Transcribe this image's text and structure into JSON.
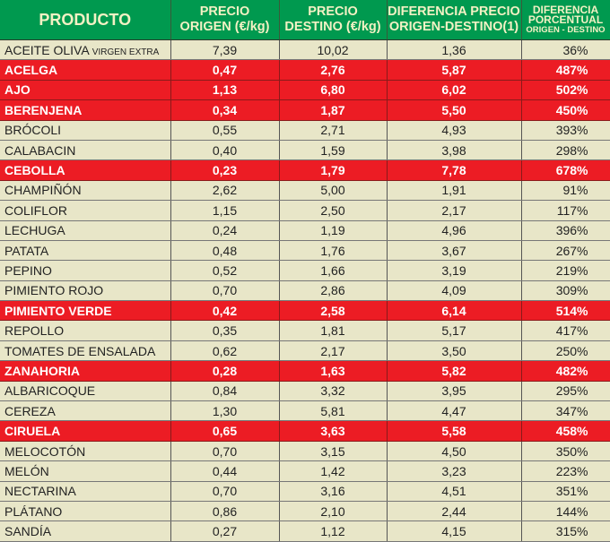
{
  "header": {
    "producto": "PRODUCTO",
    "precio_origen": [
      "PRECIO",
      "ORIGEN (€/kg)"
    ],
    "precio_destino": [
      "PRECIO",
      "DESTINO (€/kg)"
    ],
    "diferencia": [
      "DIFERENCIA PRECIO",
      "ORIGEN-DESTINO(1)"
    ],
    "porcentual": [
      "DIFERENCIA",
      "PORCENTUAL",
      "ORIGEN - DESTINO"
    ]
  },
  "colors": {
    "header_bg": "#00994f",
    "row_bg": "#e8e6c8",
    "highlight_bg": "#ec1c24"
  },
  "rows": [
    {
      "name": "ACEITE OLIVA",
      "note": "VIRGEN EXTRA",
      "origen": "7,39",
      "destino": "10,02",
      "diff": "1,36",
      "pct": "36%",
      "hl": false
    },
    {
      "name": "ACELGA",
      "origen": "0,47",
      "destino": "2,76",
      "diff": "5,87",
      "pct": "487%",
      "hl": true
    },
    {
      "name": "AJO",
      "origen": "1,13",
      "destino": "6,80",
      "diff": "6,02",
      "pct": "502%",
      "hl": true
    },
    {
      "name": "BERENJENA",
      "origen": "0,34",
      "destino": "1,87",
      "diff": "5,50",
      "pct": "450%",
      "hl": true
    },
    {
      "name": "BRÓCOLI",
      "origen": "0,55",
      "destino": "2,71",
      "diff": "4,93",
      "pct": "393%",
      "hl": false
    },
    {
      "name": "CALABACIN",
      "origen": "0,40",
      "destino": "1,59",
      "diff": "3,98",
      "pct": "298%",
      "hl": false
    },
    {
      "name": "CEBOLLA",
      "origen": "0,23",
      "destino": "1,79",
      "diff": "7,78",
      "pct": "678%",
      "hl": true
    },
    {
      "name": "CHAMPIÑÓN",
      "origen": "2,62",
      "destino": "5,00",
      "diff": "1,91",
      "pct": "91%",
      "hl": false
    },
    {
      "name": "COLIFLOR",
      "origen": "1,15",
      "destino": "2,50",
      "diff": "2,17",
      "pct": "117%",
      "hl": false
    },
    {
      "name": "LECHUGA",
      "origen": "0,24",
      "destino": "1,19",
      "diff": "4,96",
      "pct": "396%",
      "hl": false
    },
    {
      "name": "PATATA",
      "origen": "0,48",
      "destino": "1,76",
      "diff": "3,67",
      "pct": "267%",
      "hl": false
    },
    {
      "name": "PEPINO",
      "origen": "0,52",
      "destino": "1,66",
      "diff": "3,19",
      "pct": "219%",
      "hl": false
    },
    {
      "name": "PIMIENTO ROJO",
      "origen": "0,70",
      "destino": "2,86",
      "diff": "4,09",
      "pct": "309%",
      "hl": false
    },
    {
      "name": "PIMIENTO VERDE",
      "origen": "0,42",
      "destino": "2,58",
      "diff": "6,14",
      "pct": "514%",
      "hl": true
    },
    {
      "name": "REPOLLO",
      "origen": "0,35",
      "destino": "1,81",
      "diff": "5,17",
      "pct": "417%",
      "hl": false
    },
    {
      "name": "TOMATES DE ENSALADA",
      "origen": "0,62",
      "destino": "2,17",
      "diff": "3,50",
      "pct": "250%",
      "hl": false
    },
    {
      "name": "ZANAHORIA",
      "origen": "0,28",
      "destino": "1,63",
      "diff": "5,82",
      "pct": "482%",
      "hl": true
    },
    {
      "name": "ALBARICOQUE",
      "origen": "0,84",
      "destino": "3,32",
      "diff": "3,95",
      "pct": "295%",
      "hl": false
    },
    {
      "name": "CEREZA",
      "origen": "1,30",
      "destino": "5,81",
      "diff": "4,47",
      "pct": "347%",
      "hl": false
    },
    {
      "name": "CIRUELA",
      "origen": "0,65",
      "destino": "3,63",
      "diff": "5,58",
      "pct": "458%",
      "hl": true
    },
    {
      "name": "MELOCOTÓN",
      "origen": "0,70",
      "destino": "3,15",
      "diff": "4,50",
      "pct": "350%",
      "hl": false
    },
    {
      "name": "MELÓN",
      "origen": "0,44",
      "destino": "1,42",
      "diff": "3,23",
      "pct": "223%",
      "hl": false
    },
    {
      "name": "NECTARINA",
      "origen": "0,70",
      "destino": "3,16",
      "diff": "4,51",
      "pct": "351%",
      "hl": false
    },
    {
      "name": "PLÁTANO",
      "origen": "0,86",
      "destino": "2,10",
      "diff": "2,44",
      "pct": "144%",
      "hl": false
    },
    {
      "name": "SANDÍA",
      "origen": "0,27",
      "destino": "1,12",
      "diff": "4,15",
      "pct": "315%",
      "hl": false
    }
  ]
}
